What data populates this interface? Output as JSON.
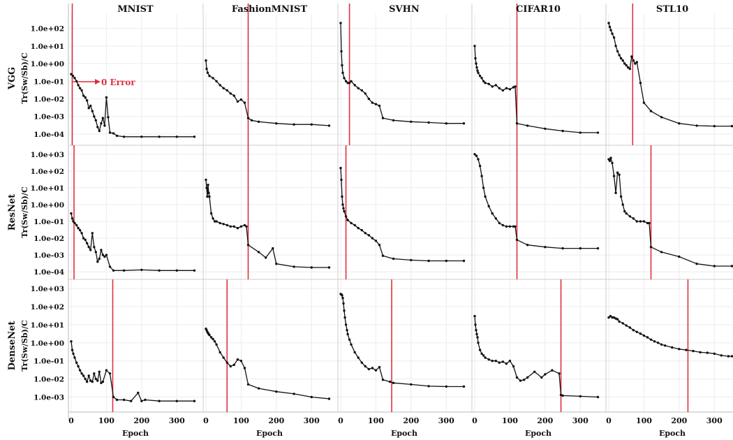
{
  "chart_data": {
    "type": "line",
    "columns": [
      "MNIST",
      "FashionMNIST",
      "SVHN",
      "CIFAR10",
      "STL10"
    ],
    "rows": [
      "VGG",
      "ResNet",
      "DenseNet"
    ],
    "ylabel": "Tr(Sw/Sb)/C",
    "xlabel": "Epoch",
    "yscale": "log",
    "x_ticks": [
      0,
      100,
      200,
      300
    ],
    "xlim": [
      0,
      350
    ],
    "grid": true,
    "annotation": {
      "text": "0 Error",
      "row": 0,
      "col": 0
    },
    "y_ticks": [
      [
        "1.0e-04",
        "1.0e-03",
        "1.0e-02",
        "1.0e-01",
        "1.0e+00",
        "1.0e+01",
        "1.0e+02"
      ],
      [
        "1.0e-04",
        "1.0e-03",
        "1.0e-02",
        "1.0e-01",
        "1.0e+00",
        "1.0e+01",
        "1.0e+02",
        "1.0e+03"
      ],
      [
        "1.0e-03",
        "1.0e-02",
        "1.0e-01",
        "1.0e+00",
        "1.0e+01",
        "1.0e+02",
        "1.0e+03"
      ]
    ],
    "ylim_exp": [
      [
        -4.4,
        2.5
      ],
      [
        -4.2,
        3.2
      ],
      [
        -3.6,
        3.2
      ]
    ],
    "zero_error_epoch": [
      [
        3,
        120,
        25,
        120,
        68
      ],
      [
        8,
        120,
        15,
        120,
        120
      ],
      [
        118,
        60,
        145,
        245,
        225
      ]
    ],
    "series": [
      [
        {
          "name": "VGG / MNIST",
          "x": [
            0,
            5,
            10,
            15,
            20,
            25,
            30,
            35,
            40,
            45,
            50,
            55,
            60,
            65,
            70,
            75,
            80,
            85,
            90,
            95,
            100,
            105,
            110,
            120,
            130,
            150,
            200,
            250,
            300,
            350
          ],
          "y": [
            0.25,
            0.2,
            0.15,
            0.1,
            0.06,
            0.04,
            0.03,
            0.015,
            0.012,
            0.008,
            0.003,
            0.004,
            0.002,
            0.001,
            0.0006,
            0.00025,
            0.00015,
            0.0004,
            0.0008,
            0.0003,
            0.012,
            0.0009,
            0.00012,
            0.00011,
            8e-05,
            7e-05,
            7e-05,
            7e-05,
            7e-05,
            7e-05
          ]
        },
        {
          "name": "VGG / FashionMNIST",
          "x": [
            0,
            2,
            5,
            10,
            20,
            30,
            40,
            50,
            60,
            70,
            80,
            90,
            100,
            110,
            120,
            130,
            150,
            200,
            250,
            300,
            350
          ],
          "y": [
            1.5,
            0.5,
            0.3,
            0.2,
            0.15,
            0.1,
            0.06,
            0.04,
            0.03,
            0.02,
            0.015,
            0.007,
            0.009,
            0.006,
            0.0008,
            0.0006,
            0.0005,
            0.0004,
            0.00035,
            0.00035,
            0.0003
          ]
        },
        {
          "name": "VGG / SVHN",
          "x": [
            0,
            2,
            4,
            6,
            10,
            15,
            20,
            25,
            30,
            40,
            50,
            60,
            70,
            80,
            90,
            100,
            110,
            120,
            150,
            200,
            250,
            300,
            350
          ],
          "y": [
            200,
            5,
            0.8,
            0.3,
            0.15,
            0.1,
            0.08,
            0.08,
            0.1,
            0.06,
            0.04,
            0.03,
            0.02,
            0.01,
            0.006,
            0.005,
            0.004,
            0.0008,
            0.0006,
            0.0005,
            0.00045,
            0.0004,
            0.0004
          ]
        },
        {
          "name": "VGG / CIFAR10",
          "x": [
            0,
            2,
            4,
            6,
            8,
            10,
            15,
            20,
            25,
            30,
            40,
            50,
            60,
            70,
            80,
            90,
            100,
            110,
            115,
            120,
            150,
            200,
            250,
            300,
            350
          ],
          "y": [
            10,
            2,
            1,
            0.6,
            0.4,
            0.3,
            0.2,
            0.15,
            0.1,
            0.08,
            0.07,
            0.05,
            0.06,
            0.04,
            0.03,
            0.04,
            0.035,
            0.045,
            0.05,
            0.0004,
            0.0003,
            0.0002,
            0.00015,
            0.00012,
            0.00012
          ]
        },
        {
          "name": "VGG / STL10",
          "x": [
            0,
            3,
            6,
            10,
            15,
            20,
            25,
            30,
            35,
            40,
            45,
            50,
            55,
            60,
            65,
            70,
            75,
            80,
            90,
            100,
            120,
            150,
            200,
            250,
            300,
            350
          ],
          "y": [
            200,
            120,
            80,
            50,
            30,
            10,
            5,
            3,
            2,
            1.5,
            1,
            0.8,
            0.6,
            0.5,
            2.5,
            1.5,
            1.0,
            1.2,
            0.08,
            0.006,
            0.002,
            0.0009,
            0.0004,
            0.0003,
            0.00028,
            0.00028
          ]
        }
      ],
      [
        {
          "name": "ResNet / MNIST",
          "x": [
            0,
            3,
            6,
            10,
            15,
            20,
            25,
            30,
            35,
            40,
            45,
            50,
            55,
            60,
            65,
            70,
            75,
            80,
            85,
            90,
            95,
            100,
            110,
            120,
            150,
            200,
            250,
            300,
            350
          ],
          "y": [
            0.3,
            0.15,
            0.1,
            0.08,
            0.06,
            0.04,
            0.03,
            0.02,
            0.01,
            0.008,
            0.005,
            0.003,
            0.002,
            0.02,
            0.003,
            0.0015,
            0.0004,
            0.0006,
            0.002,
            0.001,
            0.0008,
            0.001,
            0.0002,
            0.00012,
            0.00012,
            0.00013,
            0.00012,
            0.00012,
            0.00012
          ]
        },
        {
          "name": "ResNet / FashionMNIST",
          "x": [
            0,
            2,
            4,
            6,
            8,
            10,
            15,
            20,
            25,
            30,
            40,
            50,
            60,
            70,
            80,
            90,
            100,
            110,
            115,
            120,
            150,
            170,
            190,
            200,
            250,
            300,
            350
          ],
          "y": [
            30,
            10,
            3,
            15,
            5,
            3,
            0.3,
            0.15,
            0.1,
            0.1,
            0.08,
            0.07,
            0.06,
            0.05,
            0.05,
            0.04,
            0.05,
            0.06,
            0.05,
            0.004,
            0.0015,
            0.0007,
            0.0025,
            0.0003,
            0.0002,
            0.00018,
            0.00018
          ]
        },
        {
          "name": "ResNet / SVHN",
          "x": [
            0,
            2,
            4,
            6,
            8,
            10,
            15,
            20,
            30,
            40,
            50,
            60,
            70,
            80,
            90,
            100,
            110,
            120,
            150,
            200,
            250,
            300,
            350
          ],
          "y": [
            150,
            30,
            3,
            1,
            0.6,
            0.4,
            0.2,
            0.12,
            0.08,
            0.06,
            0.04,
            0.03,
            0.02,
            0.015,
            0.01,
            0.007,
            0.004,
            0.0009,
            0.0006,
            0.0005,
            0.00045,
            0.00045,
            0.00045
          ]
        },
        {
          "name": "ResNet / CIFAR10",
          "x": [
            0,
            5,
            10,
            15,
            20,
            25,
            30,
            40,
            50,
            60,
            70,
            80,
            90,
            100,
            110,
            115,
            120,
            150,
            200,
            250,
            300,
            350
          ],
          "y": [
            1000,
            800,
            500,
            200,
            50,
            10,
            3,
            0.8,
            0.3,
            0.15,
            0.08,
            0.06,
            0.05,
            0.05,
            0.05,
            0.05,
            0.008,
            0.004,
            0.003,
            0.0025,
            0.0025,
            0.0025
          ]
        },
        {
          "name": "ResNet / STL10",
          "x": [
            0,
            3,
            6,
            10,
            15,
            20,
            25,
            30,
            35,
            40,
            45,
            50,
            60,
            70,
            80,
            90,
            100,
            110,
            115,
            120,
            150,
            200,
            250,
            300,
            350
          ],
          "y": [
            500,
            400,
            600,
            300,
            50,
            5,
            80,
            60,
            3,
            1,
            0.4,
            0.3,
            0.2,
            0.15,
            0.1,
            0.1,
            0.1,
            0.08,
            0.08,
            0.003,
            0.0015,
            0.0008,
            0.0003,
            0.00022,
            0.00022
          ]
        }
      ],
      [
        {
          "name": "DenseNet / MNIST",
          "x": [
            0,
            3,
            6,
            10,
            15,
            20,
            25,
            30,
            35,
            40,
            45,
            50,
            55,
            60,
            65,
            70,
            75,
            80,
            85,
            90,
            100,
            110,
            120,
            130,
            150,
            170,
            190,
            200,
            210,
            250,
            300,
            350
          ],
          "y": [
            1.2,
            0.4,
            0.25,
            0.15,
            0.08,
            0.05,
            0.03,
            0.02,
            0.015,
            0.01,
            0.007,
            0.015,
            0.008,
            0.007,
            0.02,
            0.01,
            0.008,
            0.025,
            0.006,
            0.007,
            0.03,
            0.02,
            0.001,
            0.0007,
            0.0007,
            0.0006,
            0.0017,
            0.0006,
            0.0007,
            0.0006,
            0.0006,
            0.0006
          ]
        },
        {
          "name": "DenseNet / FashionMNIST",
          "x": [
            0,
            2,
            4,
            6,
            8,
            10,
            15,
            20,
            25,
            30,
            40,
            50,
            60,
            70,
            80,
            90,
            100,
            110,
            120,
            150,
            200,
            250,
            300,
            350
          ],
          "y": [
            6,
            5,
            4,
            3.5,
            3,
            2.7,
            2,
            1.6,
            1.2,
            0.8,
            0.3,
            0.15,
            0.08,
            0.05,
            0.06,
            0.12,
            0.1,
            0.04,
            0.005,
            0.003,
            0.002,
            0.0015,
            0.001,
            0.0008
          ]
        },
        {
          "name": "DenseNet / SVHN",
          "x": [
            0,
            2,
            4,
            6,
            8,
            10,
            12,
            15,
            18,
            20,
            25,
            30,
            40,
            50,
            60,
            70,
            80,
            90,
            100,
            110,
            120,
            140,
            150,
            200,
            250,
            300,
            350
          ],
          "y": [
            500,
            480,
            420,
            300,
            150,
            60,
            25,
            10,
            5,
            3,
            1.5,
            0.8,
            0.3,
            0.15,
            0.08,
            0.05,
            0.035,
            0.04,
            0.03,
            0.045,
            0.009,
            0.007,
            0.006,
            0.005,
            0.004,
            0.0038,
            0.0038
          ]
        },
        {
          "name": "DenseNet / CIFAR10",
          "x": [
            0,
            2,
            4,
            6,
            8,
            10,
            15,
            20,
            25,
            30,
            40,
            50,
            60,
            70,
            80,
            90,
            100,
            110,
            120,
            130,
            140,
            150,
            170,
            190,
            200,
            220,
            240,
            245,
            250,
            300,
            350
          ],
          "y": [
            30,
            10,
            5,
            3,
            2,
            1,
            0.4,
            0.25,
            0.2,
            0.15,
            0.12,
            0.1,
            0.1,
            0.08,
            0.09,
            0.07,
            0.1,
            0.05,
            0.012,
            0.008,
            0.009,
            0.012,
            0.025,
            0.012,
            0.018,
            0.03,
            0.02,
            0.0013,
            0.0012,
            0.0011,
            0.001
          ]
        },
        {
          "name": "DenseNet / STL10",
          "x": [
            0,
            5,
            10,
            15,
            20,
            25,
            30,
            40,
            50,
            60,
            70,
            80,
            90,
            100,
            110,
            120,
            130,
            140,
            150,
            160,
            180,
            200,
            220,
            240,
            260,
            280,
            300,
            320,
            340,
            350
          ],
          "y": [
            25,
            30,
            25,
            25,
            22,
            20,
            15,
            12,
            9,
            7,
            5,
            4,
            3.2,
            2.5,
            2,
            1.5,
            1.2,
            1,
            0.8,
            0.7,
            0.55,
            0.45,
            0.4,
            0.35,
            0.3,
            0.28,
            0.25,
            0.2,
            0.18,
            0.18
          ]
        }
      ]
    ]
  }
}
